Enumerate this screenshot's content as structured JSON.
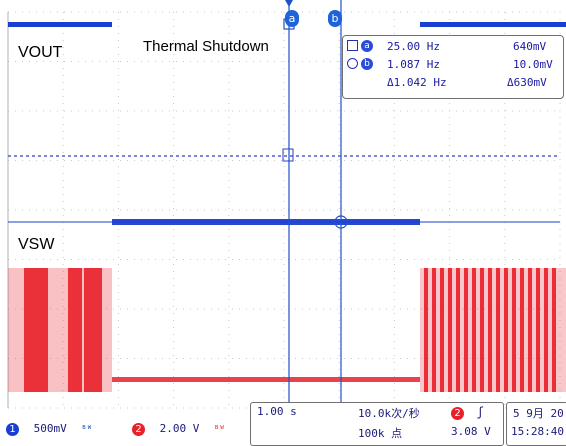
{
  "channels": {
    "ch1": {
      "label": "VOUT",
      "color": "#1a3fd0",
      "scale": "500mV",
      "badge": "1"
    },
    "ch2": {
      "label": "VSW",
      "color": "#e8202a",
      "scale": "2.00 V",
      "badge": "2"
    }
  },
  "annotation": "Thermal Shutdown",
  "cursors": {
    "a_label": "a",
    "b_label": "b",
    "a_freq": "25.00 Hz",
    "a_volt": "640mV",
    "b_freq": "1.087 Hz",
    "b_volt": "10.0mV",
    "delta_freq": "Δ1.042 Hz",
    "delta_volt": "Δ630mV"
  },
  "timebase": {
    "scale": "1.00 s",
    "sample_rate": "10.0k次/秒",
    "record_length": "100k 点"
  },
  "trigger": {
    "channel": "2",
    "slope_symbol": "ʃ",
    "level": "3.08 V"
  },
  "datetime": {
    "date": "5 9月 20",
    "time": "15:28:40"
  },
  "ui_icons": {
    "cursor_a_marker": "square-icon",
    "cursor_b_marker": "circle-icon",
    "coupling": "dc-coupling-icon"
  }
}
